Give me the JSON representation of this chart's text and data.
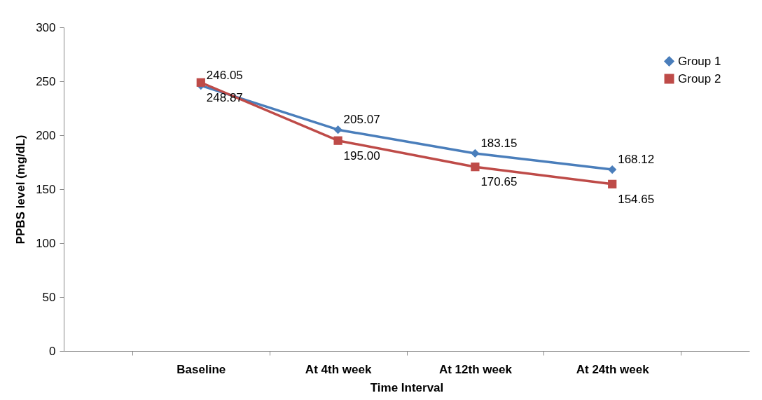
{
  "chart_data": {
    "type": "line",
    "xlabel": "Time Interval",
    "ylabel": "PPBS level (mg/dL)",
    "categories": [
      "Baseline",
      "At 4th week",
      "At 12th week",
      "At 24th week"
    ],
    "ylim": [
      0,
      300
    ],
    "yticks": [
      0,
      50,
      100,
      150,
      200,
      250,
      300
    ],
    "grid": false,
    "legend": "top right",
    "line_style": "solid",
    "series": [
      {
        "name": "Group 1",
        "color": "#4a7ebb",
        "marker": "diamond",
        "values": [
          246.05,
          205.07,
          183.15,
          168.12
        ],
        "value_labels": [
          "246.05",
          "205.07",
          "183.15",
          "168.12"
        ]
      },
      {
        "name": "Group 2",
        "color": "#be4b48",
        "marker": "square",
        "values": [
          248.87,
          195.0,
          170.65,
          154.65
        ],
        "value_labels": [
          "248.87",
          "195.00",
          "170.65",
          "154.65"
        ]
      }
    ]
  }
}
